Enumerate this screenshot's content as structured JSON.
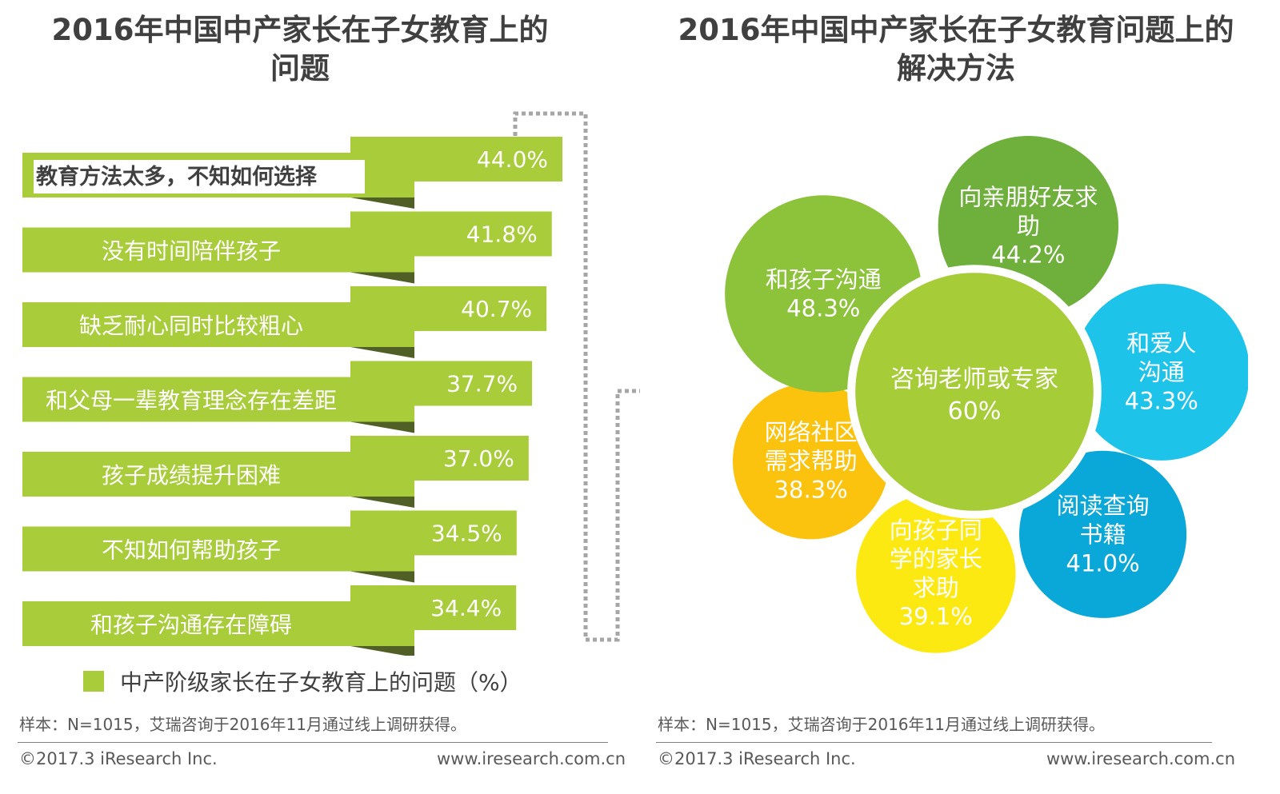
{
  "left": {
    "title_line1": "2016年中国中产家长在子女教育上的",
    "title_line2": "问题",
    "legend": "中产阶级家长在子女教育上的问题（%）",
    "note": "样本：N=1015，艾瑞咨询于2016年11月通过线上调研获得。",
    "copyright": "©2017.3 iResearch Inc.",
    "website": "www.iresearch.com.cn"
  },
  "right": {
    "title_line1": "2016年中国中产家长在子女教育问题上的",
    "title_line2": "解决方法",
    "note": "样本：N=1015，艾瑞咨询于2016年11月通过线上调研获得。",
    "copyright": "©2017.3 iResearch Inc.",
    "website": "www.iresearch.com.cn"
  },
  "colors": {
    "bar_green": "#a8cc3a",
    "bar_shadow": "#4f5f26",
    "highlight_bg": "#ffffff",
    "connector": "#a6a6a6"
  },
  "chart_data": [
    {
      "type": "bar",
      "orientation": "horizontal",
      "title": "2016年中国中产家长在子女教育上的问题",
      "series_name": "中产阶级家长在子女教育上的问题（%）",
      "categories": [
        "教育方法太多，不知如何选择",
        "没有时间陪伴孩子",
        "缺乏耐心同时比较粗心",
        "和父母一辈教育理念存在差距",
        "孩子成绩提升困难",
        "不知如何帮助孩子",
        "和孩子沟通存在障碍"
      ],
      "values": [
        44.0,
        41.8,
        40.7,
        37.7,
        37.0,
        34.5,
        34.4
      ],
      "labels": [
        "44.0%",
        "41.8%",
        "40.7%",
        "37.7%",
        "37.0%",
        "34.5%",
        "34.4%"
      ],
      "highlighted_index": 0,
      "unit": "%"
    },
    {
      "type": "pie",
      "style": "flower",
      "title": "2016年中国中产家长在子女教育问题上的解决方法",
      "center": {
        "label": "咨询老师或专家",
        "value": 60,
        "value_label": "60%",
        "color": "#a6cc38"
      },
      "petals": [
        {
          "lines": [
            "和孩子沟通"
          ],
          "value": 48.3,
          "value_label": "48.3%",
          "color": "#8dc33b"
        },
        {
          "lines": [
            "向亲朋好友求",
            "助"
          ],
          "value": 44.2,
          "value_label": "44.2%",
          "color": "#6fb03c"
        },
        {
          "lines": [
            "和爱人",
            "沟通"
          ],
          "value": 43.3,
          "value_label": "43.3%",
          "color": "#1ec3ea"
        },
        {
          "lines": [
            "阅读查询",
            "书籍"
          ],
          "value": 41.0,
          "value_label": "41.0%",
          "color": "#0aa7d9"
        },
        {
          "lines": [
            "向孩子同",
            "学的家长",
            "求助"
          ],
          "value": 39.1,
          "value_label": "39.1%",
          "color": "#fde912"
        },
        {
          "lines": [
            "网络社区",
            "需求帮助"
          ],
          "value": 38.3,
          "value_label": "38.3%",
          "color": "#fbc20e"
        }
      ]
    }
  ]
}
